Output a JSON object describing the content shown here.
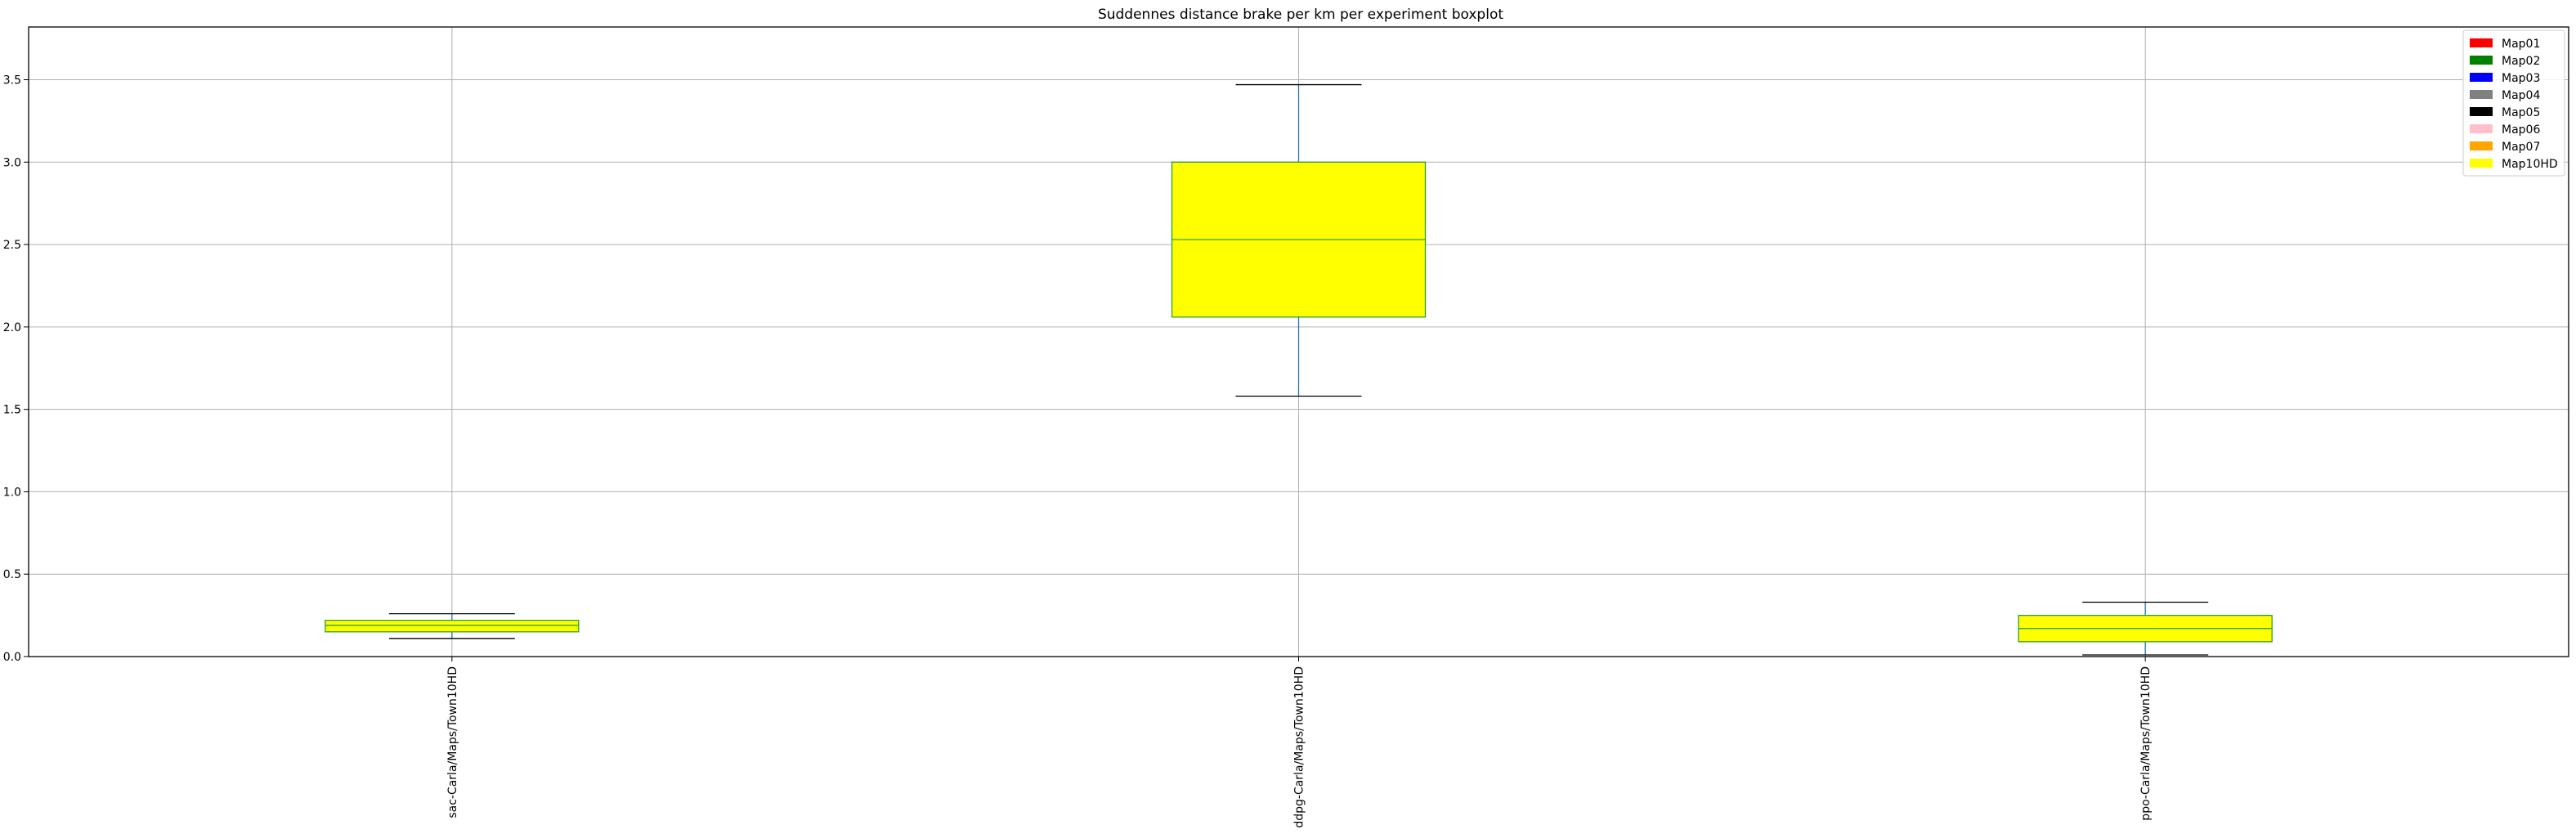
{
  "chart_data": {
    "type": "boxplot",
    "title": "Suddennes distance brake per km per experiment boxplot",
    "xlabel": "",
    "ylabel": "",
    "ylim": [
      0.0,
      3.82
    ],
    "yticks": [
      "0.0",
      "0.5",
      "1.0",
      "1.5",
      "2.0",
      "2.5",
      "3.0",
      "3.5"
    ],
    "yticks_values": [
      0.0,
      0.5,
      1.0,
      1.5,
      2.0,
      2.5,
      3.0,
      3.5
    ],
    "grid": true,
    "legend_position": "top-right",
    "categories": [
      "sac-Carla/Maps/Town10HD",
      "ddpg-Carla/Maps/Town10HD",
      "ppo-Carla/Maps/Town10HD"
    ],
    "boxes": [
      {
        "category": "sac-Carla/Maps/Town10HD",
        "whisker_low": 0.11,
        "q1": 0.15,
        "median": 0.19,
        "q3": 0.22,
        "whisker_high": 0.26,
        "fill": "#ffff00"
      },
      {
        "category": "ddpg-Carla/Maps/Town10HD",
        "whisker_low": 1.58,
        "q1": 2.06,
        "median": 2.53,
        "q3": 3.0,
        "whisker_high": 3.47,
        "fill": "#ffff00"
      },
      {
        "category": "ppo-Carla/Maps/Town10HD",
        "whisker_low": 0.01,
        "q1": 0.09,
        "median": 0.17,
        "q3": 0.25,
        "whisker_high": 0.33,
        "fill": "#ffff00"
      }
    ],
    "legend": [
      {
        "label": "Map01",
        "color": "#ff0000"
      },
      {
        "label": "Map02",
        "color": "#008000"
      },
      {
        "label": "Map03",
        "color": "#0000ff"
      },
      {
        "label": "Map04",
        "color": "#808080"
      },
      {
        "label": "Map05",
        "color": "#000000"
      },
      {
        "label": "Map06",
        "color": "#ffc0cb"
      },
      {
        "label": "Map07",
        "color": "#ffa500"
      },
      {
        "label": "Map10HD",
        "color": "#ffff00"
      }
    ],
    "colors": {
      "box_edge": "#2ca02c",
      "median_line": "#2ca02c",
      "whisker": "#1f77b4",
      "cap": "#000000",
      "grid": "#b0b0b0",
      "axes": "#000000"
    }
  }
}
